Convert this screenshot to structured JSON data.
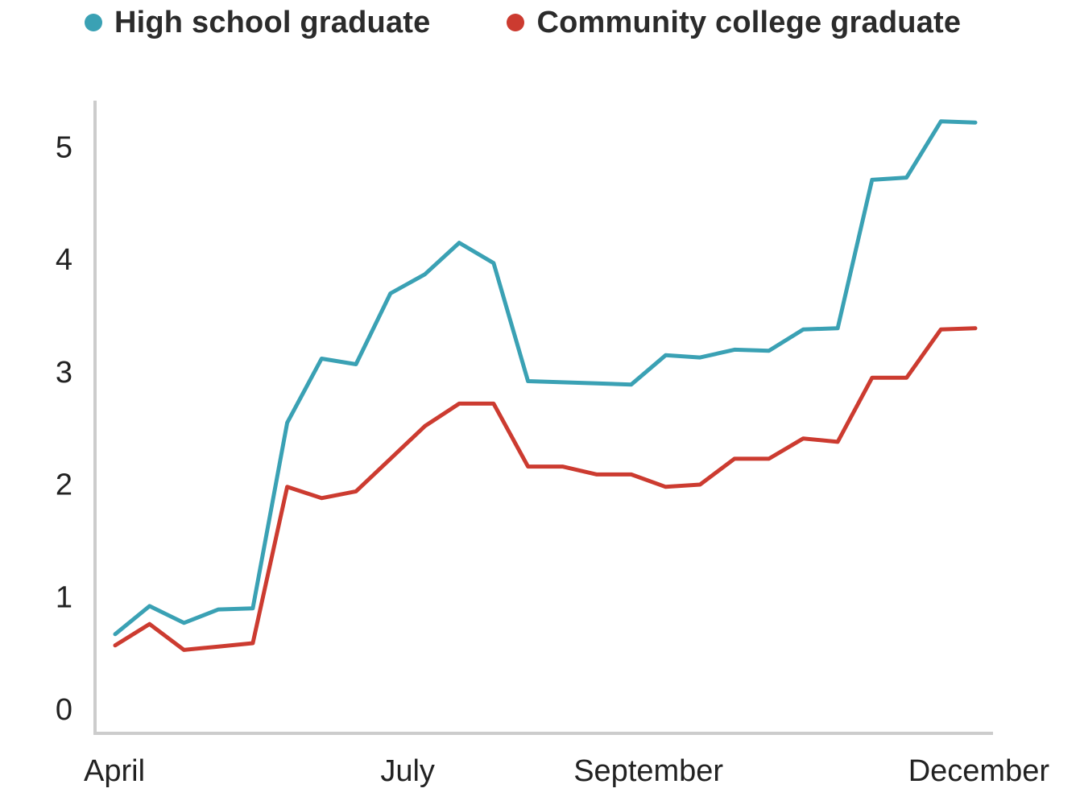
{
  "chart_data": {
    "type": "line",
    "x": [
      1,
      2,
      3,
      4,
      5,
      6,
      7,
      8,
      9,
      10,
      11,
      12,
      13,
      14,
      15,
      16,
      17,
      18,
      19,
      20,
      21,
      22,
      23,
      24,
      25,
      26
    ],
    "x_tick_labels": [
      "April",
      "July",
      "September",
      "December"
    ],
    "x_tick_positions": [
      1,
      9.5,
      16.5,
      26
    ],
    "ylim": [
      0,
      5.3
    ],
    "y_ticks": [
      0,
      1,
      2,
      3,
      4,
      5
    ],
    "grid": false,
    "legend_position": "top",
    "series": [
      {
        "name": "High school graduate",
        "color": "#3aa1b4",
        "values": [
          0.66,
          0.91,
          0.76,
          0.88,
          0.89,
          2.54,
          3.11,
          3.06,
          3.69,
          3.86,
          4.14,
          3.96,
          2.91,
          2.9,
          2.89,
          2.88,
          3.14,
          3.12,
          3.19,
          3.18,
          3.37,
          3.38,
          4.7,
          4.72,
          5.22,
          5.21
        ]
      },
      {
        "name": "Community college graduate",
        "color": "#cc3b30",
        "values": [
          0.56,
          0.75,
          0.52,
          0.55,
          0.58,
          1.97,
          1.87,
          1.93,
          2.22,
          2.51,
          2.71,
          2.71,
          2.15,
          2.15,
          2.08,
          2.08,
          1.97,
          1.99,
          2.22,
          2.22,
          2.4,
          2.37,
          2.94,
          2.94,
          3.37,
          3.38
        ]
      }
    ],
    "title": "",
    "xlabel": "",
    "ylabel": ""
  }
}
